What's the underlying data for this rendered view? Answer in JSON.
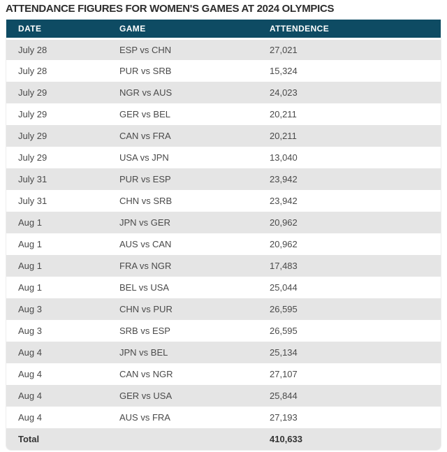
{
  "colors": {
    "header_bg": "#0e4b63",
    "header_text": "#ffffff",
    "stripe": "#e5e5e5",
    "row_text": "#4a4a4a",
    "title_text": "#2d2d2d",
    "total_text": "#333333"
  },
  "chart_data": {
    "type": "table",
    "title": "ATTENDANCE FIGURES FOR WOMEN'S GAMES AT 2024 OLYMPICS",
    "columns": [
      "DATE",
      "GAME",
      "ATTENDENCE"
    ],
    "rows": [
      [
        "July 28",
        "ESP vs CHN",
        "27,021"
      ],
      [
        "July 28",
        "PUR vs SRB",
        "15,324"
      ],
      [
        "July 29",
        "NGR vs AUS",
        "24,023"
      ],
      [
        "July 29",
        "GER vs BEL",
        "20,211"
      ],
      [
        "July 29",
        "CAN vs FRA",
        "20,211"
      ],
      [
        "July 29",
        "USA vs JPN",
        "13,040"
      ],
      [
        "July 31",
        "PUR vs ESP",
        "23,942"
      ],
      [
        "July 31",
        "CHN vs SRB",
        "23,942"
      ],
      [
        "Aug 1",
        "JPN vs GER",
        "20,962"
      ],
      [
        "Aug 1",
        "AUS vs CAN",
        "20,962"
      ],
      [
        "Aug 1",
        "FRA vs NGR",
        "17,483"
      ],
      [
        "Aug 1",
        "BEL vs USA",
        "25,044"
      ],
      [
        "Aug 3",
        "CHN vs PUR",
        "26,595"
      ],
      [
        "Aug 3",
        "SRB vs ESP",
        "26,595"
      ],
      [
        "Aug 4",
        "JPN vs BEL",
        "25,134"
      ],
      [
        "Aug 4",
        "CAN vs NGR",
        "27,107"
      ],
      [
        "Aug 4",
        "GER vs USA",
        "25,844"
      ],
      [
        "Aug 4",
        "AUS vs FRA",
        "27,193"
      ]
    ],
    "total": {
      "label": "Total",
      "value": "410,633"
    },
    "layout": {
      "stripes": true,
      "stripe_start": "first-row",
      "legend": "none"
    }
  }
}
